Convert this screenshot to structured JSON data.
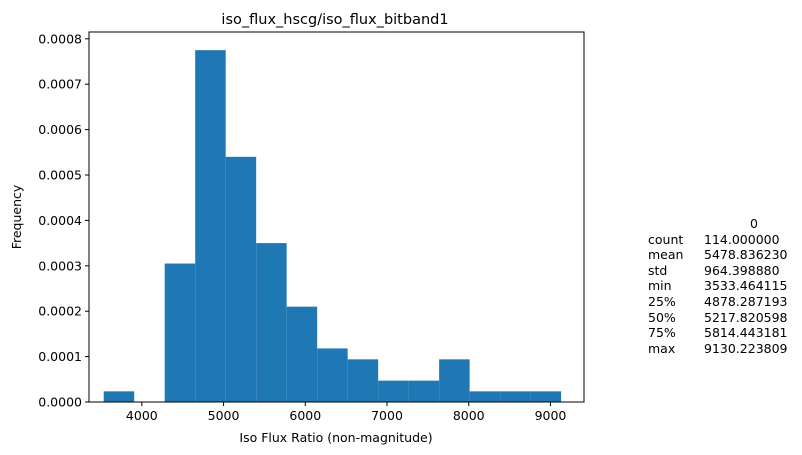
{
  "chart_data": {
    "type": "bar",
    "title": "iso_flux_hscg/iso_flux_bitband1",
    "xlabel": "Iso Flux Ratio (non-magnitude)",
    "ylabel": "Frequency",
    "xlim": [
      3353.6,
      9410.2
    ],
    "ylim": [
      0,
      0.000815
    ],
    "xticks": [
      4000,
      5000,
      6000,
      7000,
      8000,
      9000
    ],
    "xtick_labels": [
      "4000",
      "5000",
      "6000",
      "7000",
      "8000",
      "9000"
    ],
    "yticks": [
      0,
      0.0001,
      0.0002,
      0.0003,
      0.0004,
      0.0005,
      0.0006,
      0.0007,
      0.0008
    ],
    "ytick_labels": [
      "0.0000",
      "0.0001",
      "0.0002",
      "0.0003",
      "0.0004",
      "0.0005",
      "0.0006",
      "0.0007",
      "0.0008"
    ],
    "bin_edges": [
      3533.464,
      3906.581,
      4279.697,
      4652.814,
      5025.931,
      5399.047,
      5772.164,
      6145.281,
      6518.398,
      6891.514,
      7264.631,
      7637.748,
      8010.864,
      8383.981,
      8757.098,
      9130.224
    ],
    "values": [
      2.35e-05,
      0,
      0.000305,
      0.000775,
      0.00054,
      0.00035,
      0.00021,
      0.000118,
      9.4e-05,
      4.7e-05,
      4.7e-05,
      9.4e-05,
      2.35e-05,
      2.35e-05,
      2.35e-05
    ],
    "grid": false,
    "bar_color": "#1f77b4"
  },
  "stats_table": {
    "header": "0",
    "rows": [
      {
        "key": "count",
        "value": "114.000000"
      },
      {
        "key": "mean",
        "value": "5478.836230"
      },
      {
        "key": "std",
        "value": "964.398880"
      },
      {
        "key": "min",
        "value": "3533.464115"
      },
      {
        "key": "25%",
        "value": "4878.287193"
      },
      {
        "key": "50%",
        "value": "5217.820598"
      },
      {
        "key": "75%",
        "value": "5814.443181"
      },
      {
        "key": "max",
        "value": "9130.223809"
      }
    ]
  }
}
